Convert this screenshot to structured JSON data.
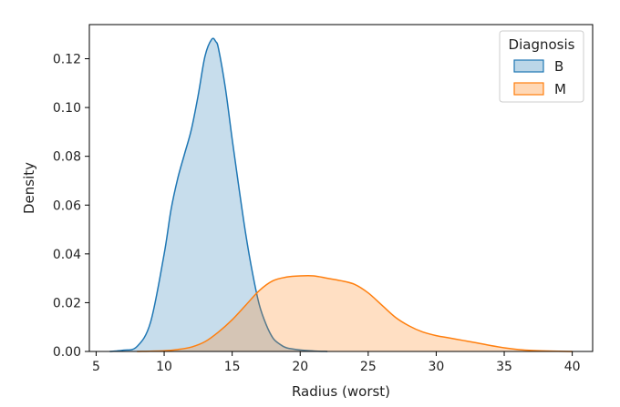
{
  "chart_data": {
    "type": "area",
    "xlabel": "Radius (worst)",
    "ylabel": "Density",
    "xlim": [
      4.5,
      41.5
    ],
    "ylim": [
      0,
      0.134
    ],
    "xticks": [
      5,
      10,
      15,
      20,
      25,
      30,
      35,
      40
    ],
    "yticks": [
      0.0,
      0.02,
      0.04,
      0.06,
      0.08,
      0.1,
      0.12
    ],
    "ytick_labels": [
      "0.00",
      "0.02",
      "0.04",
      "0.06",
      "0.08",
      "0.10",
      "0.12"
    ],
    "grid": false,
    "legend": {
      "title": "Diagnosis",
      "placement": "top-right"
    },
    "series": [
      {
        "name": "B",
        "color": "#1f77b4",
        "x": [
          6.0,
          7.0,
          8.0,
          9.0,
          10.0,
          10.5,
          11.0,
          11.5,
          12.0,
          12.5,
          13.0,
          13.5,
          13.8,
          14.0,
          14.5,
          15.0,
          15.5,
          16.0,
          16.5,
          17.0,
          17.5,
          18.0,
          18.5,
          19.0,
          20.0,
          21.0,
          22.0
        ],
        "y": [
          0.0,
          0.0005,
          0.002,
          0.012,
          0.04,
          0.058,
          0.071,
          0.081,
          0.091,
          0.105,
          0.121,
          0.128,
          0.127,
          0.124,
          0.108,
          0.087,
          0.067,
          0.048,
          0.032,
          0.019,
          0.011,
          0.0055,
          0.003,
          0.0015,
          0.0006,
          0.0002,
          0.0
        ]
      },
      {
        "name": "M",
        "color": "#ff7f0e",
        "x": [
          8.0,
          10.0,
          11.0,
          12.0,
          13.0,
          14.0,
          15.0,
          16.0,
          17.0,
          18.0,
          19.0,
          20.0,
          21.0,
          22.0,
          23.0,
          24.0,
          25.0,
          26.0,
          27.0,
          28.0,
          29.0,
          30.0,
          31.0,
          32.0,
          33.0,
          35.0,
          37.0,
          40.0
        ],
        "y": [
          0.0,
          0.0003,
          0.0008,
          0.0018,
          0.004,
          0.008,
          0.013,
          0.019,
          0.025,
          0.029,
          0.0305,
          0.031,
          0.031,
          0.03,
          0.029,
          0.0275,
          0.024,
          0.019,
          0.014,
          0.0105,
          0.008,
          0.0065,
          0.0055,
          0.0045,
          0.0035,
          0.0015,
          0.0004,
          0.0
        ]
      }
    ]
  }
}
